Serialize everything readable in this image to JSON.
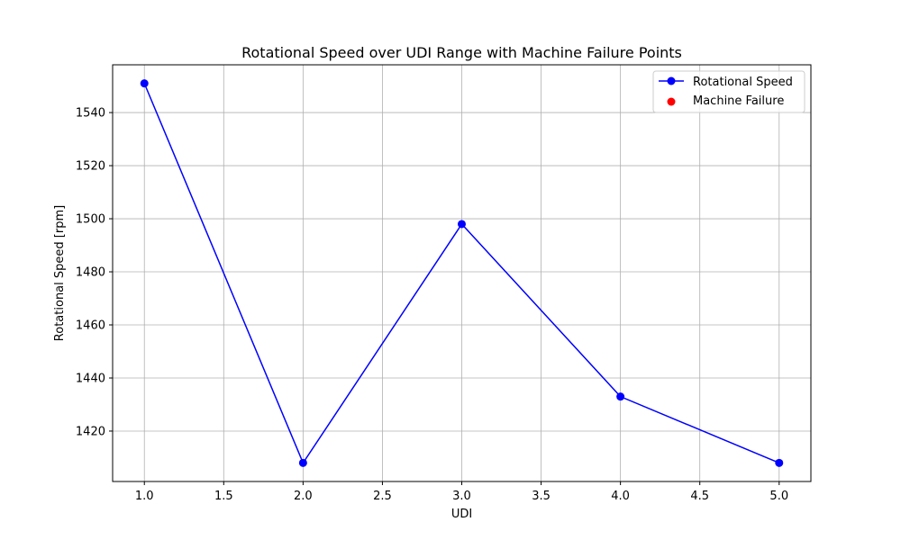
{
  "chart_data": {
    "type": "line",
    "title": "Rotational Speed over UDI Range with Machine Failure Points",
    "xlabel": "UDI",
    "ylabel": "Rotational Speed [rpm]",
    "xlim": [
      0.8,
      5.2
    ],
    "ylim": [
      1401,
      1558
    ],
    "xticks": [
      1.0,
      1.5,
      2.0,
      2.5,
      3.0,
      3.5,
      4.0,
      4.5,
      5.0
    ],
    "xtick_labels": [
      "1.0",
      "1.5",
      "2.0",
      "2.5",
      "3.0",
      "3.5",
      "4.0",
      "4.5",
      "5.0"
    ],
    "yticks": [
      1420,
      1440,
      1460,
      1480,
      1500,
      1520,
      1540
    ],
    "ytick_labels": [
      "1420",
      "1440",
      "1460",
      "1480",
      "1500",
      "1520",
      "1540"
    ],
    "grid": true,
    "legend_position": "top-right",
    "series": [
      {
        "name": "Rotational Speed",
        "kind": "line-marker",
        "color": "#0000ff",
        "x": [
          1,
          2,
          3,
          4,
          5
        ],
        "y": [
          1551,
          1408,
          1498,
          1433,
          1408
        ]
      },
      {
        "name": "Machine Failure",
        "kind": "scatter",
        "color": "#ff0000",
        "x": [],
        "y": []
      }
    ]
  }
}
